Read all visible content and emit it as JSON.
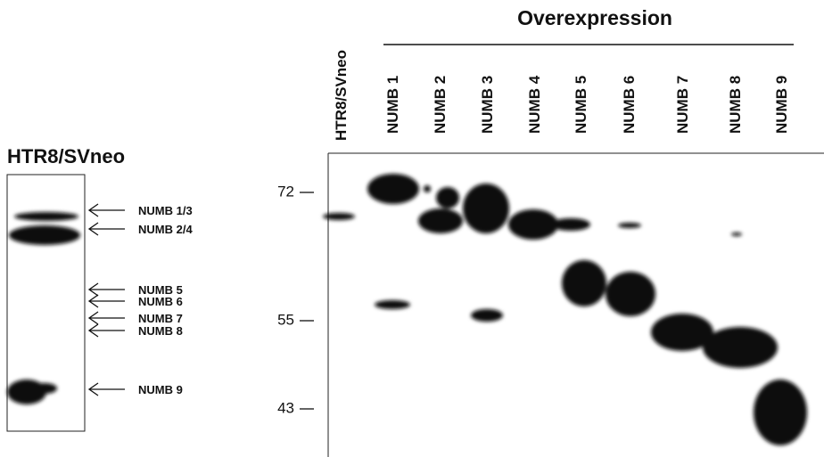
{
  "left_panel": {
    "title": "HTR8/SVneo",
    "labels": [
      "NUMB 1/3",
      "NUMB 2/4",
      "NUMB 5",
      "NUMB 6",
      "NUMB 7",
      "NUMB 8",
      "NUMB 9"
    ]
  },
  "right_panel": {
    "header": "Overexpression",
    "lanes": [
      "HTR8/SVneo",
      "NUMB 1",
      "NUMB 2",
      "NUMB 3",
      "NUMB 4",
      "NUMB 5",
      "NUMB 6",
      "NUMB 7",
      "NUMB 8",
      "NUMB 9"
    ],
    "markers": [
      "72",
      "55",
      "43"
    ]
  }
}
